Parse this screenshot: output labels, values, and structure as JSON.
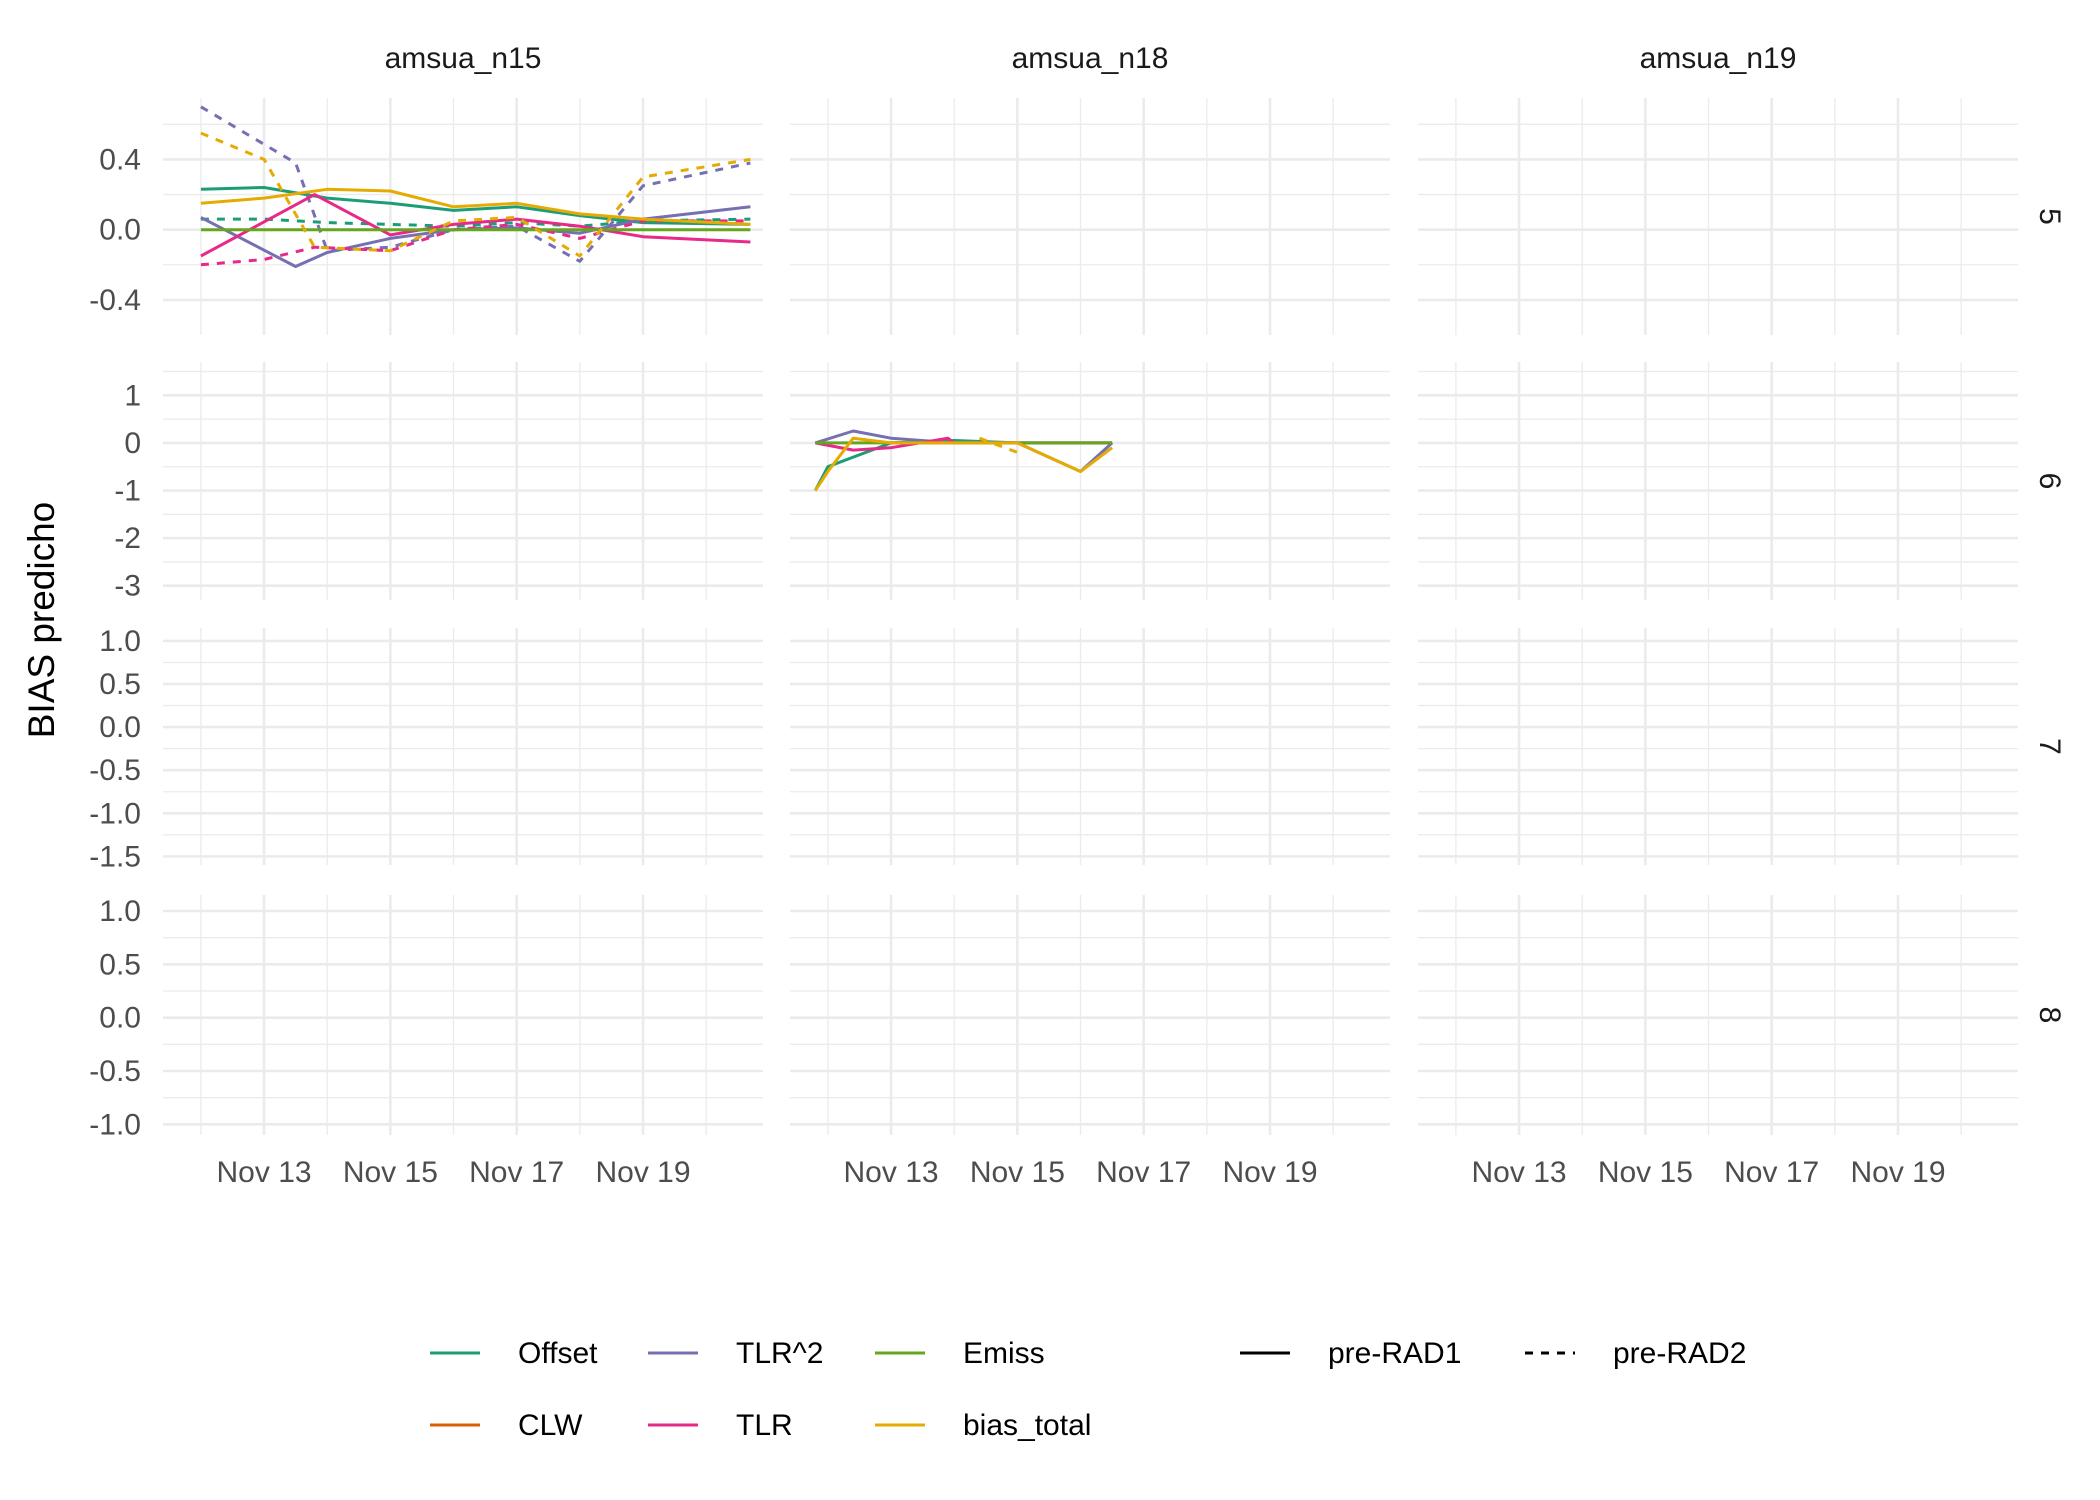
{
  "chart_data": {
    "type": "line",
    "ylabel": "BIAS predicho",
    "xlabel": "",
    "facet_columns": [
      "amsua_n15",
      "amsua_n18",
      "amsua_n19"
    ],
    "facet_rows": [
      "5",
      "6",
      "7",
      "8"
    ],
    "x_tick_labels": [
      "Nov 13",
      "Nov 15",
      "Nov 17",
      "Nov 19"
    ],
    "x_tick_values": [
      13,
      15,
      17,
      19
    ],
    "xlim": [
      11.4,
      20.9
    ],
    "row_ylims": {
      "5": [
        -0.6,
        0.75
      ],
      "6": [
        -3.3,
        1.7
      ],
      "7": [
        -1.6,
        1.15
      ],
      "8": [
        -1.1,
        1.15
      ]
    },
    "row_yticks": {
      "5": {
        "values": [
          -0.4,
          0.0,
          0.4
        ],
        "labels": [
          "-0.4",
          "0.0",
          "0.4"
        ]
      },
      "6": {
        "values": [
          -3,
          -2,
          -1,
          0,
          1
        ],
        "labels": [
          "-3",
          "-2",
          "-1",
          "0",
          "1"
        ]
      },
      "7": {
        "values": [
          -1.5,
          -1.0,
          -0.5,
          0.0,
          0.5,
          1.0
        ],
        "labels": [
          "-1.5",
          "-1.0",
          "-0.5",
          "0.0",
          "0.5",
          "1.0"
        ]
      },
      "8": {
        "values": [
          -1.0,
          -0.5,
          0.0,
          0.5,
          1.0
        ],
        "labels": [
          "-1.0",
          "-0.5",
          "0.0",
          "0.5",
          "1.0"
        ]
      }
    },
    "grid": true,
    "legend": {
      "position": "bottom",
      "color_entries": [
        {
          "name": "Offset",
          "color": "#1b9e77"
        },
        {
          "name": "CLW",
          "color": "#d95f02"
        },
        {
          "name": "TLR^2",
          "color": "#7570b3"
        },
        {
          "name": "TLR",
          "color": "#e7298a"
        },
        {
          "name": "Emiss",
          "color": "#66a61e"
        },
        {
          "name": "bias_total",
          "color": "#e6ab02"
        }
      ],
      "linetype_entries": [
        {
          "name": "pre-RAD1",
          "dash": "solid"
        },
        {
          "name": "pre-RAD2",
          "dash": "dashed"
        }
      ]
    },
    "panels": [
      {
        "column": "amsua_n15",
        "row": "5",
        "series": [
          {
            "name": "Offset",
            "linetype": "pre-RAD1",
            "x": [
              12,
              13,
              14,
              15,
              16,
              17,
              18,
              19,
              20.7
            ],
            "y": [
              0.23,
              0.24,
              0.18,
              0.15,
              0.11,
              0.13,
              0.08,
              0.04,
              0.03
            ]
          },
          {
            "name": "Offset",
            "linetype": "pre-RAD2",
            "x": [
              12,
              13,
              14,
              15,
              16,
              17,
              18,
              19,
              20.7
            ],
            "y": [
              0.06,
              0.06,
              0.04,
              0.03,
              0.02,
              0.04,
              0.02,
              0.05,
              0.06
            ]
          },
          {
            "name": "TLR^2",
            "linetype": "pre-RAD1",
            "x": [
              12,
              13.5,
              14,
              15,
              16,
              17,
              18,
              19,
              20.7
            ],
            "y": [
              0.07,
              -0.21,
              -0.13,
              -0.05,
              0.0,
              0.01,
              -0.02,
              0.06,
              0.13
            ]
          },
          {
            "name": "TLR^2",
            "linetype": "pre-RAD2",
            "x": [
              12,
              13.5,
              14,
              15,
              16,
              17,
              18,
              19,
              20.7
            ],
            "y": [
              0.7,
              0.38,
              -0.12,
              -0.1,
              0.0,
              0.02,
              -0.18,
              0.25,
              0.38
            ]
          },
          {
            "name": "TLR",
            "linetype": "pre-RAD1",
            "x": [
              12,
              13.8,
              15,
              16,
              17,
              18,
              19,
              20.7
            ],
            "y": [
              -0.15,
              0.2,
              -0.03,
              0.03,
              0.06,
              0.02,
              -0.04,
              -0.07
            ]
          },
          {
            "name": "TLR",
            "linetype": "pre-RAD2",
            "x": [
              12,
              13,
              13.8,
              15,
              16,
              17,
              18,
              19,
              20.7
            ],
            "y": [
              -0.2,
              -0.17,
              -0.1,
              -0.12,
              0.0,
              0.03,
              -0.05,
              0.05,
              0.05
            ]
          },
          {
            "name": "Emiss",
            "linetype": "pre-RAD1",
            "x": [
              12,
              20.7
            ],
            "y": [
              0.0,
              0.0
            ]
          },
          {
            "name": "bias_total",
            "linetype": "pre-RAD1",
            "x": [
              12,
              13,
              14,
              15,
              16,
              17,
              18,
              19,
              20.7
            ],
            "y": [
              0.15,
              0.18,
              0.23,
              0.22,
              0.13,
              0.15,
              0.09,
              0.06,
              0.03
            ]
          },
          {
            "name": "bias_total",
            "linetype": "pre-RAD2",
            "x": [
              12,
              13,
              13.8,
              15,
              16,
              17,
              18,
              19,
              20.7
            ],
            "y": [
              0.55,
              0.4,
              -0.1,
              -0.12,
              0.05,
              0.07,
              -0.15,
              0.3,
              0.4
            ]
          }
        ]
      },
      {
        "column": "amsua_n18",
        "row": "6",
        "series": [
          {
            "name": "Offset",
            "linetype": "pre-RAD1",
            "x": [
              11.8,
              12,
              13,
              14,
              15,
              16,
              16.5
            ],
            "y": [
              -1.0,
              -0.5,
              0.0,
              0.05,
              0.0,
              0.0,
              0.0
            ]
          },
          {
            "name": "TLR^2",
            "linetype": "pre-RAD1",
            "x": [
              11.8,
              12.4,
              13,
              14,
              15,
              16,
              16.5
            ],
            "y": [
              0.0,
              0.25,
              0.1,
              0.0,
              0.0,
              -0.6,
              0.0
            ]
          },
          {
            "name": "TLR",
            "linetype": "pre-RAD1",
            "x": [
              11.8,
              12.4,
              13,
              13.9,
              14,
              15,
              16.5
            ],
            "y": [
              0.0,
              -0.15,
              -0.1,
              0.1,
              0.0,
              0.0,
              0.0
            ]
          },
          {
            "name": "Emiss",
            "linetype": "pre-RAD1",
            "x": [
              11.8,
              16.5
            ],
            "y": [
              0.0,
              0.0
            ]
          },
          {
            "name": "bias_total",
            "linetype": "pre-RAD1",
            "x": [
              11.8,
              12,
              12.4,
              13,
              14,
              15,
              16,
              16.5
            ],
            "y": [
              -1.0,
              -0.6,
              0.1,
              0.0,
              0.0,
              0.0,
              -0.6,
              -0.1
            ]
          },
          {
            "name": "bias_total",
            "linetype": "pre-RAD2",
            "x": [
              14.4,
              15
            ],
            "y": [
              0.1,
              -0.2
            ]
          }
        ]
      }
    ]
  }
}
